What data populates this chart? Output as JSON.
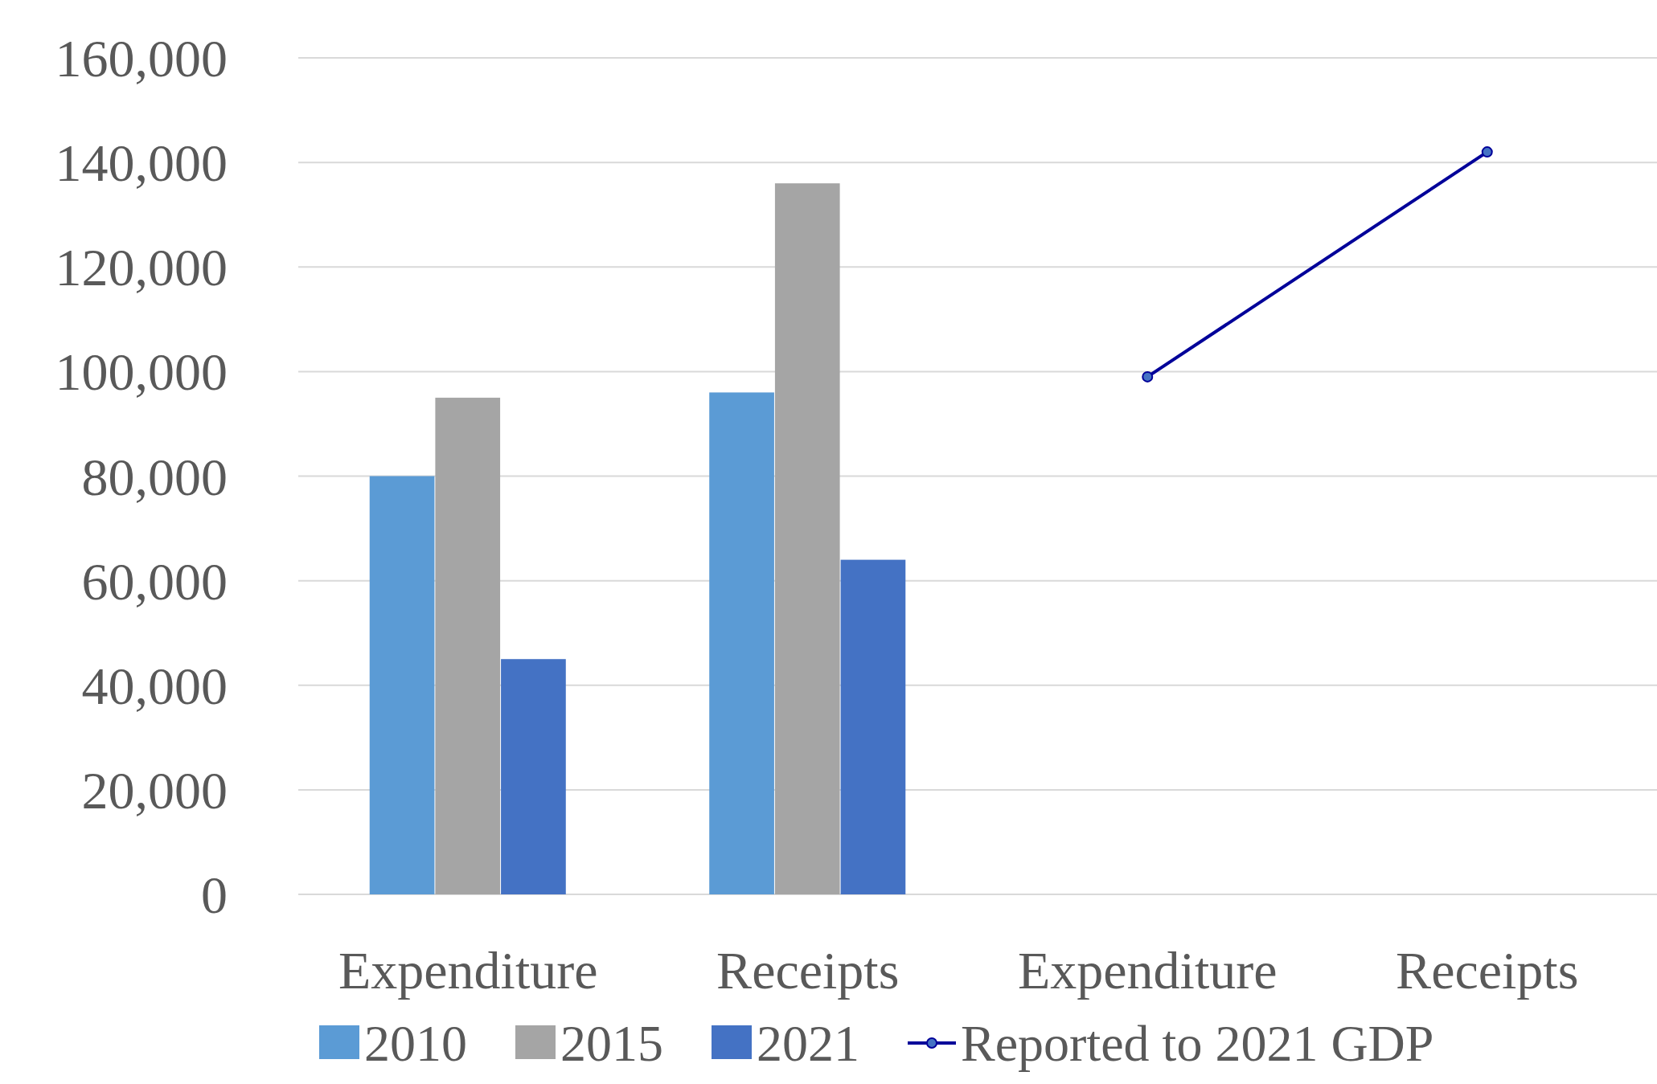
{
  "chart_data": {
    "type": "bar",
    "categories": [
      "Expenditure",
      "Receipts",
      "Expenditure",
      "Receipts"
    ],
    "series": [
      {
        "name": "2010",
        "color": "#5b9bd5",
        "values": [
          80000,
          96000,
          null,
          null
        ]
      },
      {
        "name": "2015",
        "color": "#a5a5a5",
        "values": [
          95000,
          136000,
          null,
          null
        ]
      },
      {
        "name": "2021",
        "color": "#4472c4",
        "values": [
          45000,
          64000,
          null,
          null
        ]
      },
      {
        "name": "Reported to 2021 GDP",
        "type": "line",
        "color": "#000099",
        "values": [
          null,
          null,
          99000,
          142000
        ]
      }
    ],
    "ylim": [
      0,
      160000
    ],
    "yticks": [
      {
        "value": 0,
        "label": "0"
      },
      {
        "value": 20000,
        "label": "20,000"
      },
      {
        "value": 40000,
        "label": "40,000"
      },
      {
        "value": 60000,
        "label": "60,000"
      },
      {
        "value": 80000,
        "label": "80,000"
      },
      {
        "value": 100000,
        "label": "100,000"
      },
      {
        "value": 120000,
        "label": "120,000"
      },
      {
        "value": 140000,
        "label": "140,000"
      },
      {
        "value": 160000,
        "label": "160,000"
      }
    ],
    "grid": "y",
    "legend": "bottom",
    "marker": "circle"
  }
}
